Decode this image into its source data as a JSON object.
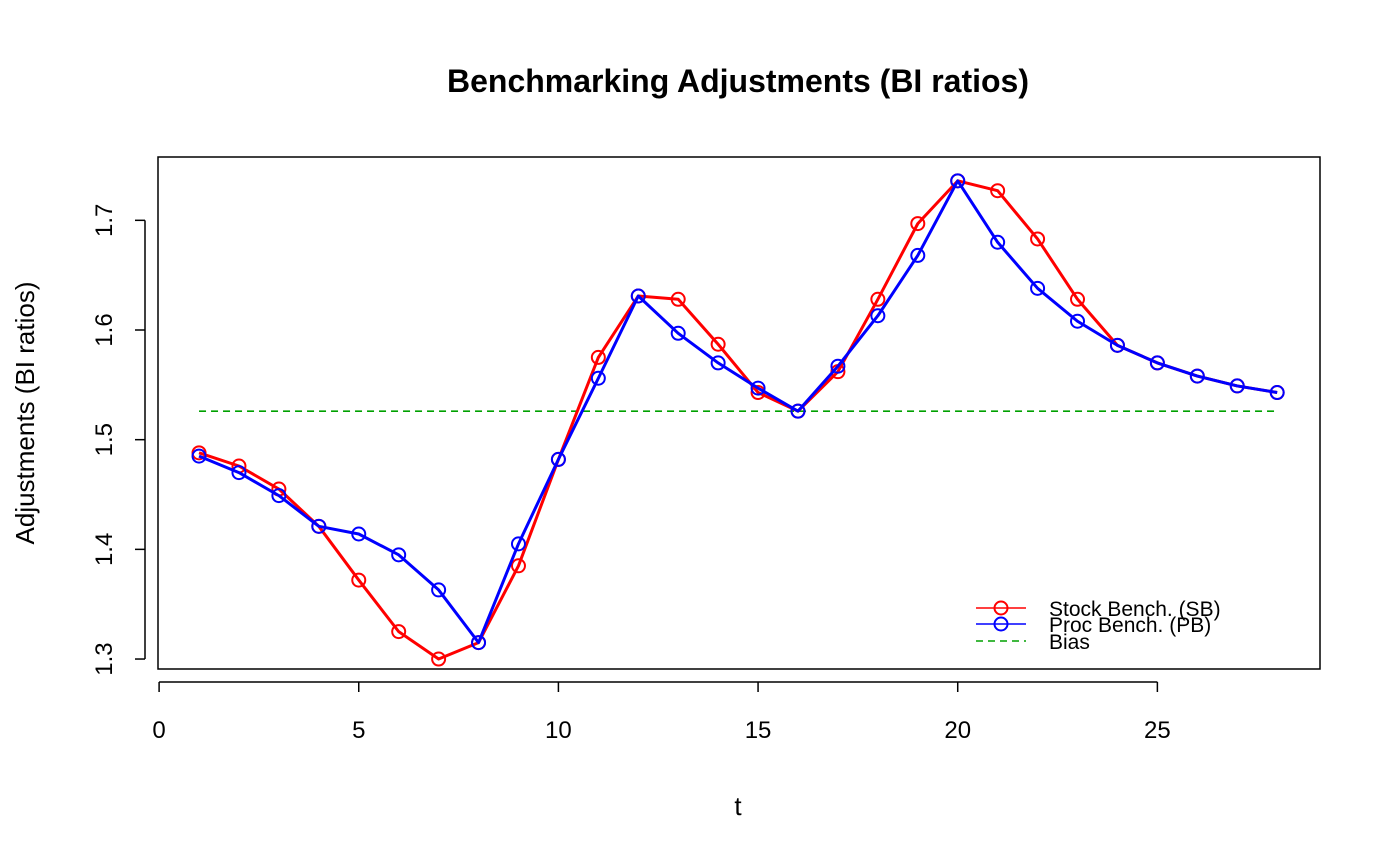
{
  "chart_data": {
    "type": "line",
    "title": "Benchmarking Adjustments (BI ratios)",
    "xlabel": "t",
    "ylabel": "Adjustments (BI ratios)",
    "xlim": [
      0,
      29
    ],
    "ylim": [
      1.29,
      1.755
    ],
    "x_ticks": [
      0,
      5,
      10,
      15,
      20,
      25
    ],
    "y_ticks": [
      1.3,
      1.4,
      1.5,
      1.6,
      1.7
    ],
    "x_tick_labels": [
      "0",
      "5",
      "10",
      "15",
      "20",
      "25"
    ],
    "y_tick_labels": [
      "1.3",
      "1.4",
      "1.5",
      "1.6",
      "1.7"
    ],
    "x": [
      1,
      2,
      3,
      4,
      5,
      6,
      7,
      8,
      9,
      10,
      11,
      12,
      13,
      14,
      15,
      16,
      17,
      18,
      19,
      20,
      21,
      22,
      23,
      24,
      25,
      26,
      27,
      28
    ],
    "series": [
      {
        "name": "Stock Bench. (SB)",
        "color": "#ff0000",
        "marker": "open-circle",
        "values": [
          1.488,
          1.476,
          1.455,
          1.421,
          1.372,
          1.325,
          1.3,
          1.315,
          1.385,
          1.482,
          1.575,
          1.631,
          1.628,
          1.587,
          1.543,
          1.526,
          1.562,
          1.628,
          1.697,
          1.736,
          1.727,
          1.683,
          1.628,
          1.586,
          1.57,
          1.558,
          1.549,
          1.543
        ]
      },
      {
        "name": "Proc Bench. (PB)",
        "color": "#0000ff",
        "marker": "open-circle",
        "values": [
          1.485,
          1.47,
          1.449,
          1.421,
          1.414,
          1.395,
          1.363,
          1.315,
          1.405,
          1.482,
          1.556,
          1.631,
          1.597,
          1.57,
          1.547,
          1.526,
          1.567,
          1.613,
          1.668,
          1.736,
          1.68,
          1.638,
          1.608,
          1.586,
          1.57,
          1.558,
          1.549,
          1.543
        ]
      }
    ],
    "bias": {
      "name": "Bias",
      "color": "#00a000",
      "style": "dashed",
      "value": 1.526,
      "x_range": [
        1,
        28
      ]
    },
    "legend": "bottom-right",
    "grid": false
  }
}
